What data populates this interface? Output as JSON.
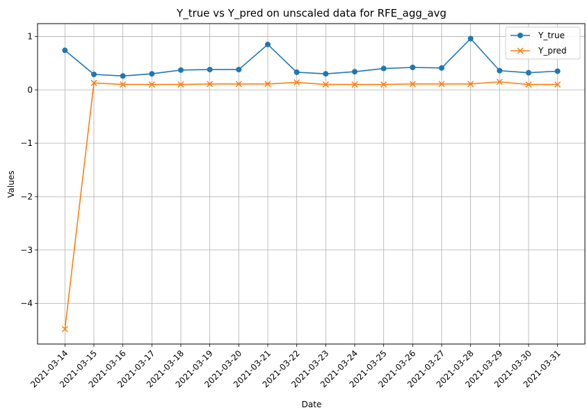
{
  "chart_data": {
    "type": "line",
    "title": "Y_true vs Y_pred on unscaled data for RFE_agg_avg",
    "xlabel": "Date",
    "ylabel": "Values",
    "x": [
      "2021-03-14",
      "2021-03-15",
      "2021-03-16",
      "2021-03-17",
      "2021-03-18",
      "2021-03-19",
      "2021-03-20",
      "2021-03-21",
      "2021-03-22",
      "2021-03-23",
      "2021-03-24",
      "2021-03-25",
      "2021-03-26",
      "2021-03-27",
      "2021-03-28",
      "2021-03-29",
      "2021-03-30",
      "2021-03-31"
    ],
    "yticks": [
      -4,
      -3,
      -2,
      -1,
      0,
      1
    ],
    "ylim": [
      -4.76,
      1.24
    ],
    "grid": true,
    "legend_position": "top-right",
    "series": [
      {
        "name": "Y_true",
        "color": "#1f77b4",
        "marker": "circle",
        "values": [
          0.74,
          0.29,
          0.26,
          0.3,
          0.37,
          0.38,
          0.38,
          0.85,
          0.33,
          0.3,
          0.34,
          0.4,
          0.42,
          0.41,
          0.96,
          0.36,
          0.32,
          0.35
        ]
      },
      {
        "name": "Y_pred",
        "color": "#ff7f0e",
        "marker": "x",
        "values": [
          -4.48,
          0.13,
          0.1,
          0.1,
          0.1,
          0.11,
          0.11,
          0.11,
          0.14,
          0.1,
          0.1,
          0.1,
          0.11,
          0.11,
          0.11,
          0.15,
          0.1,
          0.1
        ]
      }
    ]
  }
}
